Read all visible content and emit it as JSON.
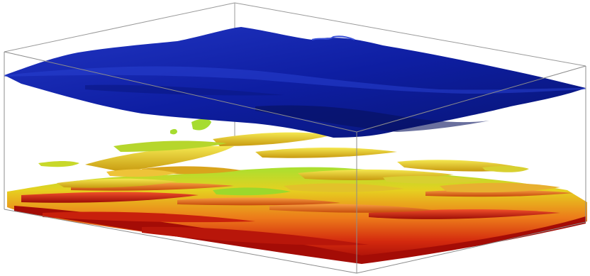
{
  "scene": {
    "description_visible_text": "",
    "colors": {
      "background": "#ffffff",
      "box_edge": "#8c8c8c",
      "surface_top": "#1f33b8",
      "surface_mid": "#0f1f9e",
      "surface_dark": "#091778",
      "structure_red": "#c8140a",
      "structure_orange": "#e8661c",
      "structure_yellow": "#d8c820",
      "structure_green": "#8fdc28"
    }
  }
}
